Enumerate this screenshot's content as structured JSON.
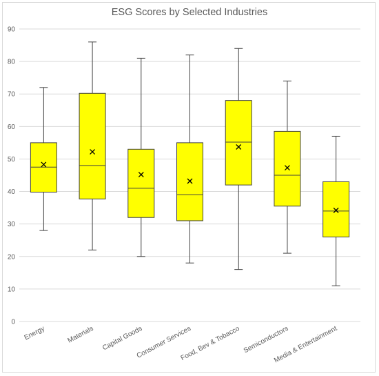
{
  "chart_data": {
    "type": "box",
    "title": "ESG Scores by Selected Industries",
    "categories": [
      "Energy",
      "Materials",
      "Capital Goods",
      "Consumer Services",
      "Food, Bev & Tobacco",
      "Semiconductors",
      "Media & Entertainment"
    ],
    "boxes": [
      {
        "min": 28,
        "q1": 39.8,
        "median": 47.5,
        "q3": 55,
        "max": 72,
        "mean": 48.3
      },
      {
        "min": 22,
        "q1": 37.7,
        "median": 48,
        "q3": 70.2,
        "max": 86,
        "mean": 52.2
      },
      {
        "min": 20,
        "q1": 32,
        "median": 41,
        "q3": 53,
        "max": 81,
        "mean": 45.2
      },
      {
        "min": 18,
        "q1": 31,
        "median": 39,
        "q3": 55,
        "max": 82,
        "mean": 43.2
      },
      {
        "min": 16,
        "q1": 42,
        "median": 55.2,
        "q3": 68,
        "max": 84,
        "mean": 53.7
      },
      {
        "min": 21,
        "q1": 35.5,
        "median": 45,
        "q3": 58.5,
        "max": 74,
        "mean": 47.3
      },
      {
        "min": 11,
        "q1": 26,
        "median": 34,
        "q3": 43,
        "max": 57,
        "mean": 34.2
      }
    ],
    "ylim": [
      0,
      90
    ],
    "yticks": [
      "0",
      "10",
      "20",
      "30",
      "40",
      "50",
      "60",
      "70",
      "80",
      "90"
    ],
    "grid": true,
    "box_color": "#ffff00",
    "line_color": "#404040",
    "grid_color": "#d9d9d9"
  }
}
